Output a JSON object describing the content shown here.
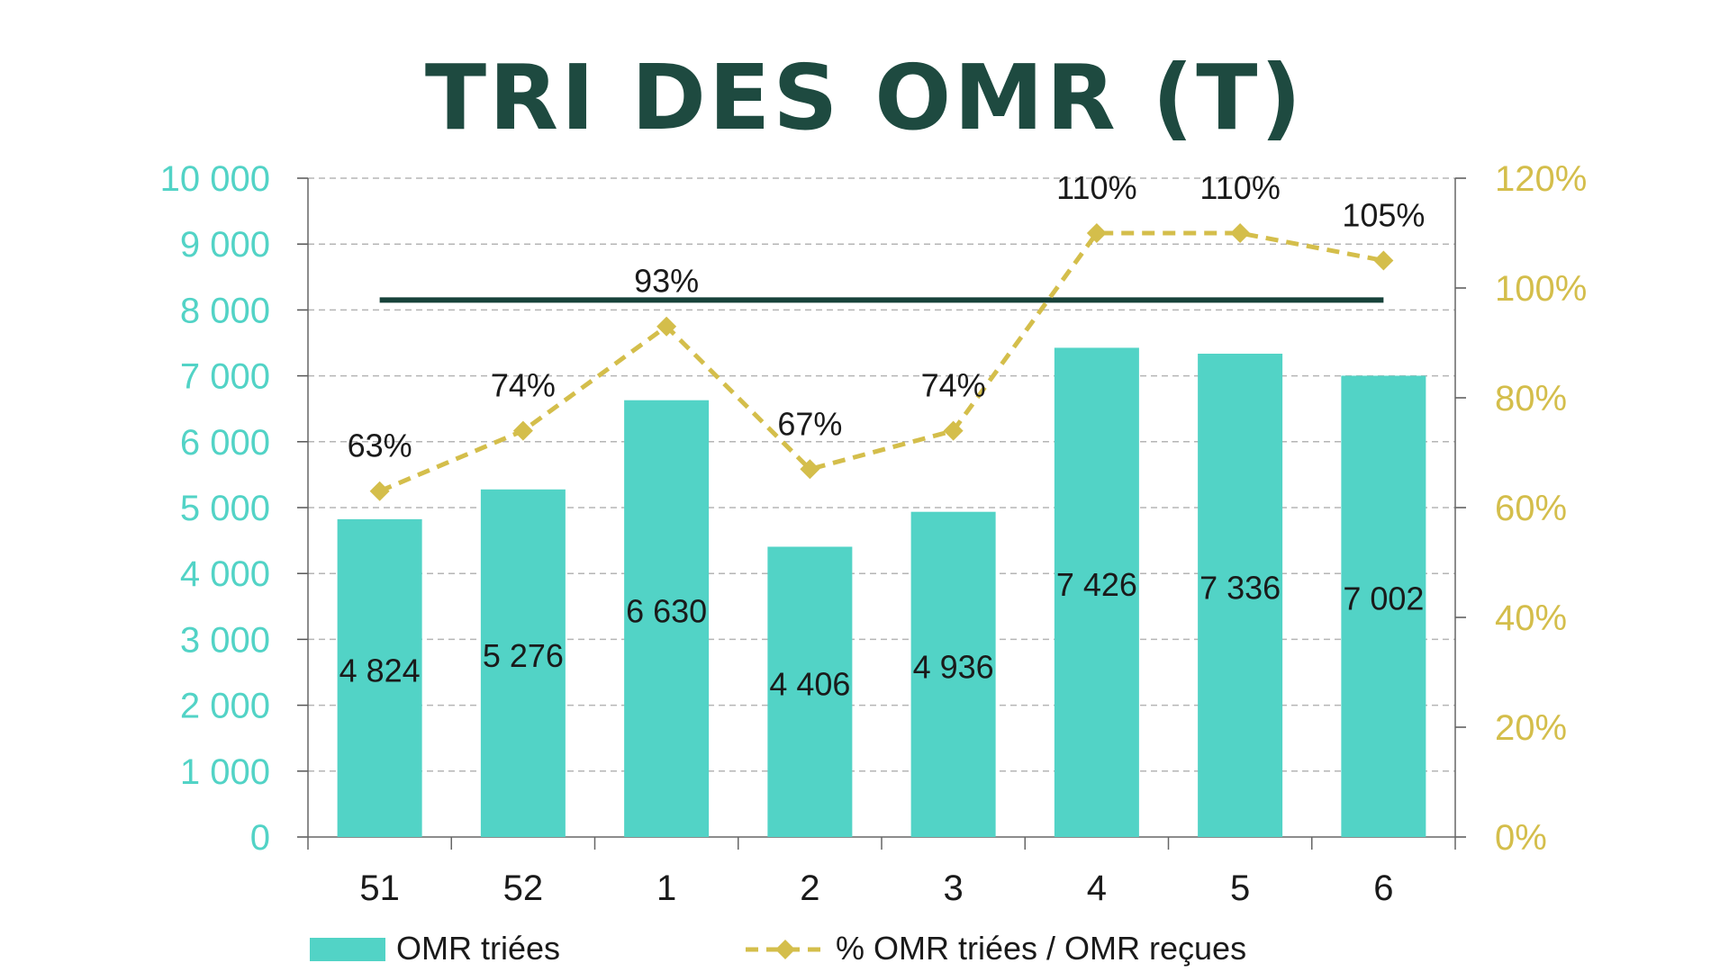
{
  "chart_data": {
    "type": "bar",
    "title": "TRI DES OMR (T)",
    "categories": [
      "51",
      "52",
      "1",
      "2",
      "3",
      "4",
      "5",
      "6"
    ],
    "series": [
      {
        "name": "OMR triées",
        "type": "bar",
        "axis": "left",
        "values": [
          4824,
          5276,
          6630,
          4406,
          4936,
          7426,
          7336,
          7002
        ],
        "labels": [
          "4 824",
          "5 276",
          "6 630",
          "4 406",
          "4 936",
          "7 426",
          "7 336",
          "7 002"
        ]
      },
      {
        "name": "% OMR triées / OMR reçues",
        "type": "line",
        "axis": "right",
        "values": [
          63,
          74,
          93,
          67,
          74,
          110,
          110,
          105
        ],
        "labels": [
          "63%",
          "74%",
          "93%",
          "67%",
          "74%",
          "110%",
          "110%",
          "105%"
        ]
      }
    ],
    "reference_line": {
      "value": 8150,
      "from_category": "51",
      "to_category": "6"
    },
    "y_left": {
      "ylim": [
        0,
        10000
      ],
      "ticks": [
        0,
        1000,
        2000,
        3000,
        4000,
        5000,
        6000,
        7000,
        8000,
        9000,
        10000
      ],
      "tick_labels": [
        "0",
        "1 000",
        "2 000",
        "3 000",
        "4 000",
        "5 000",
        "6 000",
        "7 000",
        "8 000",
        "9 000",
        "10 000"
      ]
    },
    "y_right": {
      "ylim": [
        0,
        120
      ],
      "ticks": [
        0,
        20,
        40,
        60,
        80,
        100,
        120
      ],
      "tick_labels": [
        "0%",
        "20%",
        "40%",
        "60%",
        "80%",
        "100%",
        "120%"
      ]
    },
    "grid": true,
    "legend_position": "bottom",
    "colors": {
      "bar": "#52D3C6",
      "line": "#D4BE4B",
      "reference": "#17423A",
      "title": "#1E4A40",
      "left_axis": "#52D3C6",
      "right_axis": "#D4BE4B",
      "text": "#1a1a1a",
      "grid": "#b5b5b5"
    }
  }
}
